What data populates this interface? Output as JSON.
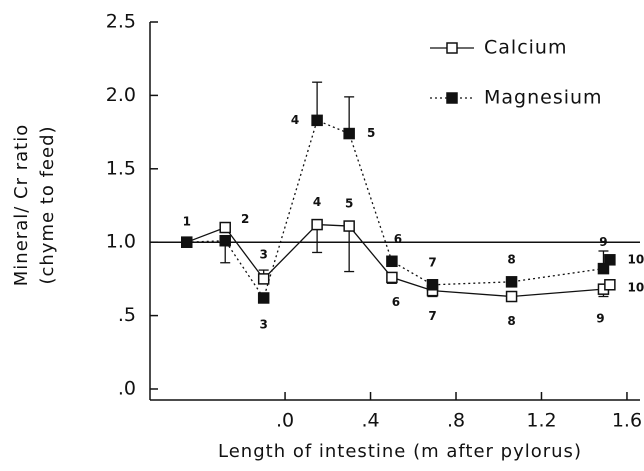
{
  "chart_data": {
    "type": "line",
    "x_label": "Length of intestine (m after pylorus)",
    "y_label": [
      "Mineral/ Cr ratio",
      "(chyme to feed)"
    ],
    "x": [
      -0.46,
      -0.28,
      -0.1,
      0.15,
      0.3,
      0.5,
      0.69,
      1.06,
      1.49,
      1.52
    ],
    "series": [
      {
        "name": "Calcium",
        "color": "#111111",
        "marker": "open-square",
        "dash": "solid",
        "values": [
          1.0,
          1.1,
          0.75,
          1.12,
          1.11,
          0.76,
          0.67,
          0.63,
          0.68,
          0.71
        ],
        "errors": [
          null,
          null,
          0.06,
          0.19,
          0.31,
          0.04,
          0.04,
          0.03,
          0.05,
          null
        ],
        "labels": [
          null,
          "2",
          "3",
          "4",
          "5",
          "6",
          "7",
          "8",
          "9",
          "10"
        ]
      },
      {
        "name": "Magnesium",
        "color": "#111111",
        "marker": "filled-square",
        "dash": "dotted",
        "values": [
          1.0,
          1.01,
          0.62,
          1.83,
          1.74,
          0.87,
          0.71,
          0.73,
          0.82,
          0.88
        ],
        "errors": [
          null,
          0.15,
          null,
          0.26,
          0.25,
          null,
          0.03,
          null,
          0.12,
          null
        ],
        "labels": [
          "1",
          null,
          "3",
          "4",
          "5",
          "6",
          "7",
          "8",
          "9",
          "10"
        ]
      }
    ],
    "hline": 1,
    "xlim": [
      -0.632,
      1.661
    ],
    "ylim": [
      -0.075,
      2.5
    ],
    "xticks": [
      {
        "value": 0,
        "label": ".0"
      },
      {
        "value": 0.4,
        "label": ".4"
      },
      {
        "value": 0.8,
        "label": ".8"
      },
      1.2,
      1.6
    ],
    "yticks": [
      {
        "value": 0,
        "label": ".0"
      },
      {
        "value": 0.5,
        "label": ".5"
      },
      {
        "value": 1,
        "label": "1.0"
      },
      1.5,
      {
        "value": 2,
        "label": "2.0"
      },
      2.5
    ],
    "legend": "top-right"
  }
}
